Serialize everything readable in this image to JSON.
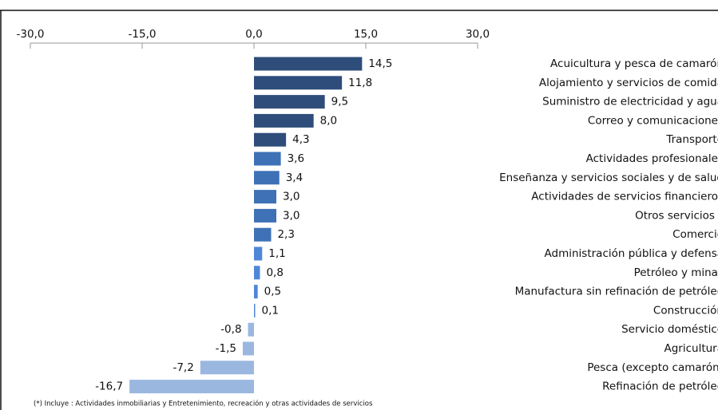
{
  "chart_data": {
    "type": "barh",
    "categories": [
      "Acuicultura y pesca de camarón",
      "Alojamiento y servicios de comida",
      "Suministro de electricidad y agua",
      "Correo y comunicaciones",
      "Transporte",
      "Actividades profesionales",
      "Enseñanza y servicios sociales y de salud",
      "Actividades de servicios financieros",
      "Otros servicios *",
      "Comercio",
      "Administración pública y defensa",
      "Petróleo y minas",
      "Manufactura sin refinación de petróleo",
      "Construcción",
      "Servicio doméstico",
      "Agricultura",
      "Pesca (excepto camarón)",
      "Refinación de petróleo"
    ],
    "values": [
      14.5,
      11.8,
      9.5,
      8.0,
      4.3,
      3.6,
      3.4,
      3.0,
      3.0,
      2.3,
      1.1,
      0.8,
      0.5,
      0.1,
      -0.8,
      -1.5,
      -7.2,
      -16.7
    ],
    "value_labels": [
      "14,5",
      "11,8",
      "9,5",
      "8,0",
      "4,3",
      "3,6",
      "3,4",
      "3,0",
      "3,0",
      "2,3",
      "1,1",
      "0,8",
      "0,5",
      "0,1",
      "-0,8",
      "-1,5",
      "-7,2",
      "-16,7"
    ],
    "colors": [
      "#2e4d7b",
      "#2e4d7b",
      "#2e4d7b",
      "#2e4d7b",
      "#2e4d7b",
      "#3e71b6",
      "#3e71b6",
      "#3e71b6",
      "#3e71b6",
      "#3e71b6",
      "#4f86d6",
      "#4f86d6",
      "#4f86d6",
      "#4f86d6",
      "#9ab7e0",
      "#9ab7e0",
      "#9ab7e0",
      "#9ab7e0"
    ],
    "xlim": [
      -30,
      30
    ],
    "xticks": [
      {
        "value": -30,
        "label": "-30,0"
      },
      {
        "value": -15,
        "label": "-15,0"
      },
      {
        "value": 0,
        "label": "0,0"
      },
      {
        "value": 15,
        "label": "15,0"
      },
      {
        "value": 30,
        "label": "30,0"
      }
    ],
    "footnote": "(*) Incluye : Actividades inmobiliarias y Entretenimiento, recreación y otras actividades de servicios"
  }
}
